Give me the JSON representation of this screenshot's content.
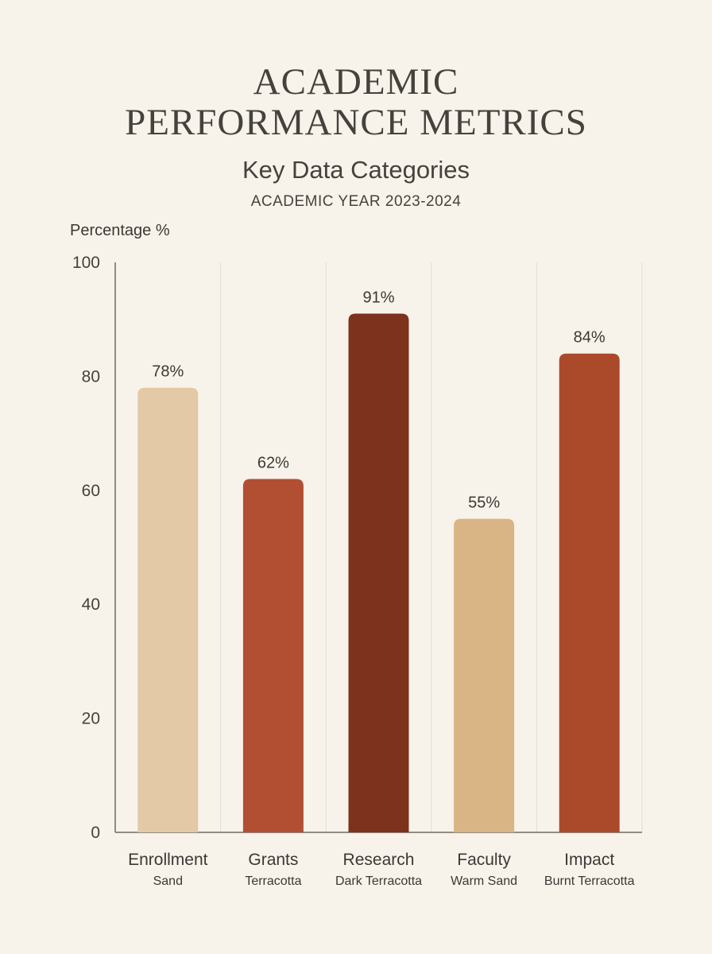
{
  "header": {
    "title_line1": "ACADEMIC",
    "title_line2": "PERFORMANCE METRICS",
    "subtitle": "Key Data Categories",
    "period": "ACADEMIC YEAR 2023-2024"
  },
  "chart_data": {
    "type": "bar",
    "title": "ACADEMIC PERFORMANCE METRICS",
    "subtitle": "Key Data Categories",
    "ylabel": "Percentage %",
    "xlabel": "",
    "ylim": [
      0,
      100
    ],
    "yticks": [
      0,
      20,
      40,
      60,
      80,
      100
    ],
    "grid": "vertical separators",
    "categories": [
      "Enrollment",
      "Grants",
      "Research",
      "Faculty",
      "Impact"
    ],
    "category_sublabels": [
      "Sand",
      "Terracotta",
      "Dark Terracotta",
      "Warm Sand",
      "Burnt Terracotta"
    ],
    "values": [
      78,
      62,
      91,
      55,
      84
    ],
    "value_labels": [
      "78%",
      "62%",
      "91%",
      "55%",
      "84%"
    ],
    "colors": [
      "#e3c9a5",
      "#b24f33",
      "#7c321d",
      "#d9b485",
      "#ab4a2a"
    ]
  }
}
